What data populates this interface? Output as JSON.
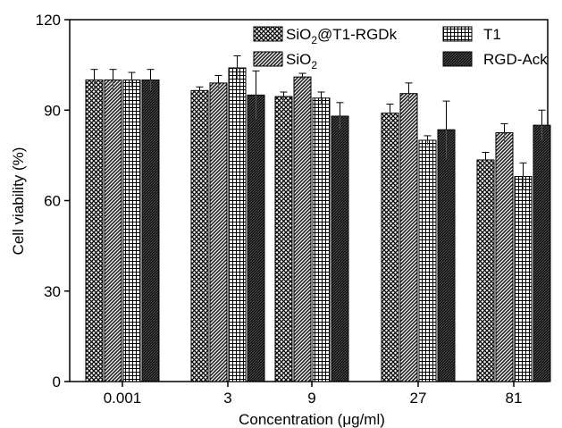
{
  "chart_data": {
    "type": "bar",
    "xlabel": "Concentration (μg/ml)",
    "ylabel": "Cell viability (%)",
    "ylim": [
      0,
      120
    ],
    "yticks": [
      0,
      30,
      60,
      90,
      120
    ],
    "categories": [
      "0.001",
      "3",
      "9",
      "27",
      "81"
    ],
    "series": [
      {
        "name": "SiO2@T1-RGDk",
        "values": [
          100,
          96.5,
          94.5,
          89,
          73.5
        ],
        "errors": [
          3.5,
          1.2,
          1.5,
          3,
          2.5
        ],
        "pattern": "crosshatch"
      },
      {
        "name": "SiO2",
        "values": [
          100,
          99,
          101,
          95.5,
          82.5
        ],
        "errors": [
          3.5,
          2.5,
          1.2,
          3.5,
          3
        ],
        "pattern": "diag"
      },
      {
        "name": "T1",
        "values": [
          100,
          104,
          94,
          80,
          68
        ],
        "errors": [
          2.5,
          4,
          2,
          1.5,
          4.5
        ],
        "pattern": "grid"
      },
      {
        "name": "RGD-Ack",
        "values": [
          100,
          95,
          88,
          83.5,
          85
        ],
        "errors": [
          3.5,
          8,
          4.5,
          9.5,
          5
        ],
        "pattern": "dense"
      }
    ],
    "legend": [
      {
        "main": "SiO",
        "sub": "2",
        "rest": "@T1-RGDk"
      },
      {
        "main": "T1",
        "sub": "",
        "rest": ""
      },
      {
        "main": "SiO",
        "sub": "2",
        "rest": ""
      },
      {
        "main": "RGD-Ack",
        "sub": "",
        "rest": ""
      }
    ],
    "legend_position": "top",
    "grid": false
  }
}
